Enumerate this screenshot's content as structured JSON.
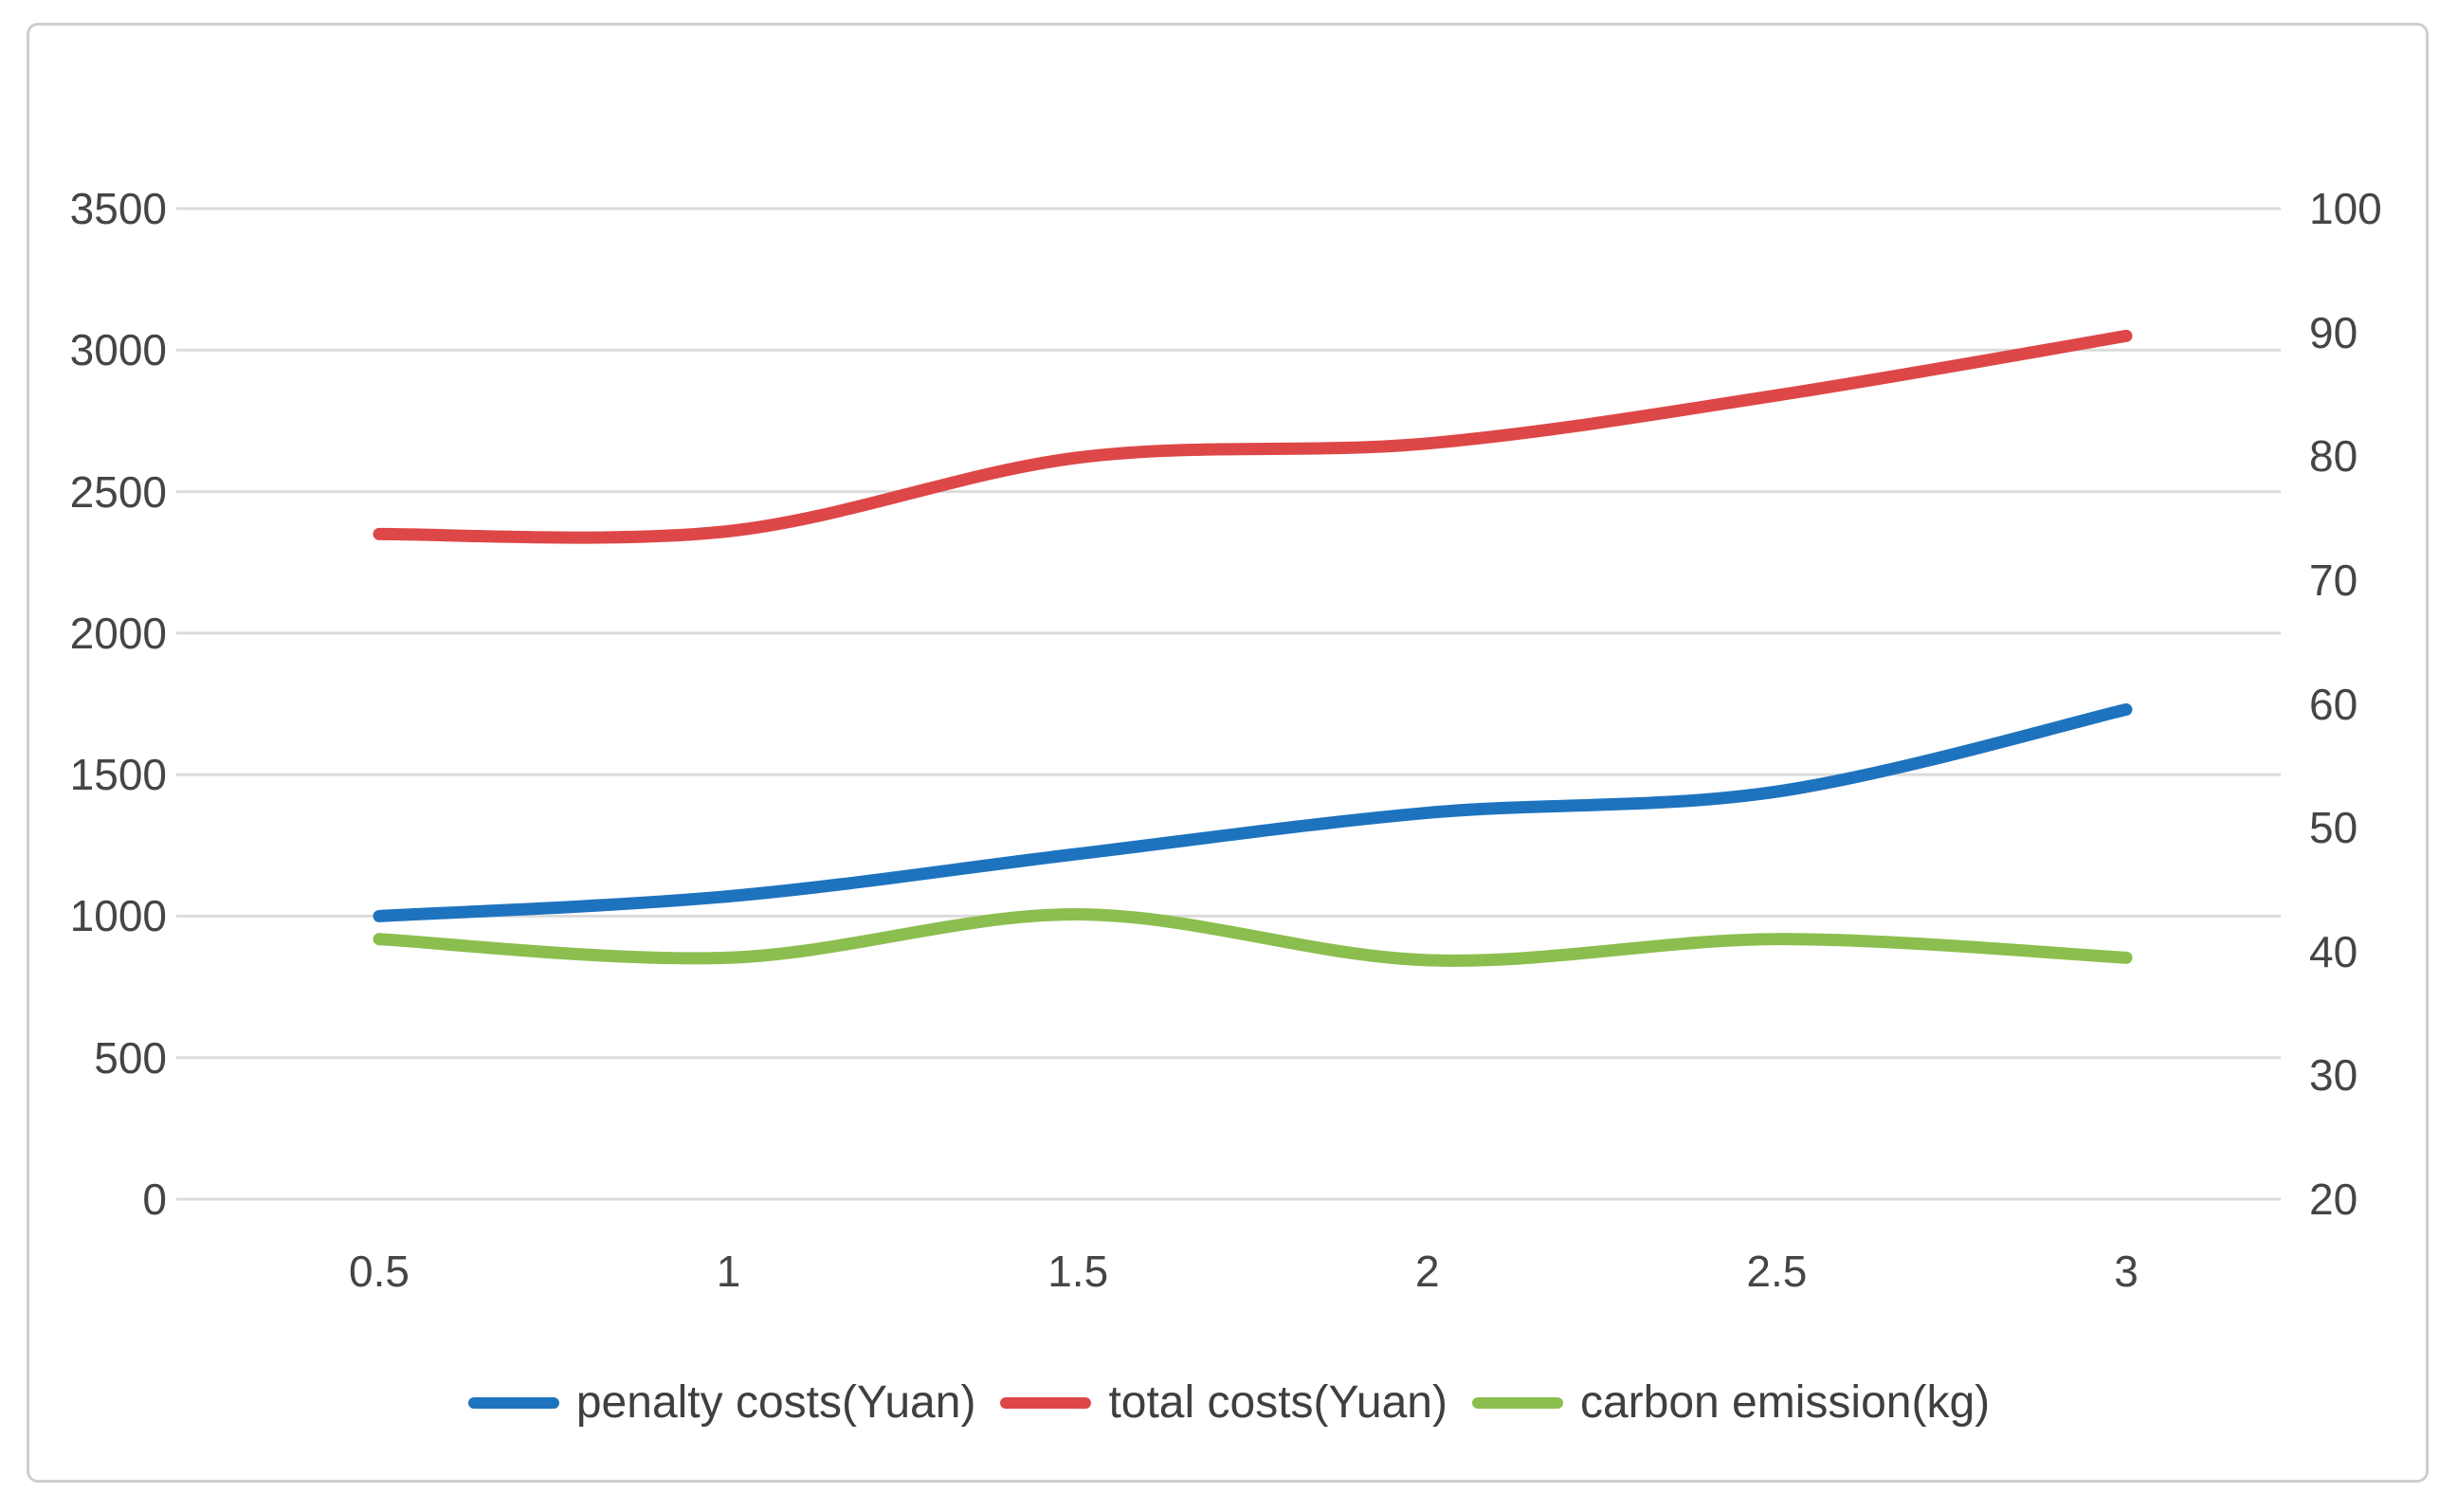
{
  "chart_data": {
    "type": "line",
    "smooth": true,
    "grid": true,
    "legend_position": "bottom",
    "x": [
      0.5,
      1,
      1.5,
      2,
      2.5,
      3
    ],
    "x_tick_labels": [
      "0.5",
      "1",
      "1.5",
      "2",
      "2.5",
      "3"
    ],
    "left_axis": {
      "min": 0,
      "max": 3500,
      "step": 500,
      "tick_labels": [
        "3500",
        "3000",
        "2500",
        "2000",
        "1500",
        "1000",
        "500",
        "0"
      ]
    },
    "right_axis": {
      "min": 20,
      "max": 100,
      "step": 10,
      "tick_labels": [
        "100",
        "90",
        "80",
        "70",
        "60",
        "50",
        "40",
        "30",
        "20"
      ]
    },
    "series": [
      {
        "name": "penalty costs(Yuan)",
        "axis": "left",
        "color": "#1e73be",
        "values": [
          1000,
          1070,
          1220,
          1365,
          1440,
          1730
        ]
      },
      {
        "name": "total costs(Yuan)",
        "axis": "left",
        "color": "#de4747",
        "values": [
          2350,
          2360,
          2620,
          2670,
          2840,
          3050
        ]
      },
      {
        "name": "carbon emission(kg)",
        "axis": "right",
        "color": "#8cbe4f",
        "values": [
          41,
          39.5,
          43,
          39.3,
          41,
          39.5
        ]
      }
    ]
  },
  "colors": {
    "gridline": "#dbdbdb",
    "frame_border": "#cfcfcf",
    "tick_text": "#454545",
    "legend_text": "#3f3f3f",
    "background": "#ffffff"
  }
}
